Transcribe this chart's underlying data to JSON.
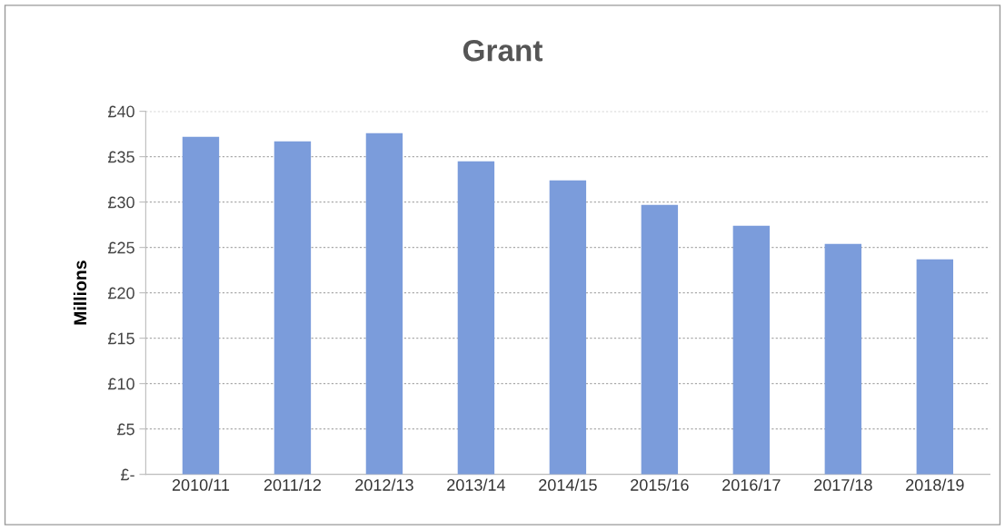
{
  "chart_data": {
    "type": "bar",
    "title": "Grant",
    "ylabel": "Millions",
    "categories": [
      "2010/11",
      "2011/12",
      "2012/13",
      "2013/14",
      "2014/15",
      "2015/16",
      "2016/17",
      "2017/18",
      "2018/19"
    ],
    "values": [
      37.2,
      36.7,
      37.6,
      34.5,
      32.4,
      29.7,
      27.4,
      25.4,
      23.7
    ],
    "color": "#7b9cdb",
    "ylim": [
      0,
      40
    ],
    "yticks": [
      {
        "value": 0,
        "label": "£-"
      },
      {
        "value": 5,
        "label": "£5"
      },
      {
        "value": 10,
        "label": "£10"
      },
      {
        "value": 15,
        "label": "£15"
      },
      {
        "value": 20,
        "label": "£20"
      },
      {
        "value": 25,
        "label": "£25"
      },
      {
        "value": 30,
        "label": "£30"
      },
      {
        "value": 35,
        "label": "£35"
      },
      {
        "value": 40,
        "label": "£40"
      }
    ],
    "grid": "y"
  }
}
